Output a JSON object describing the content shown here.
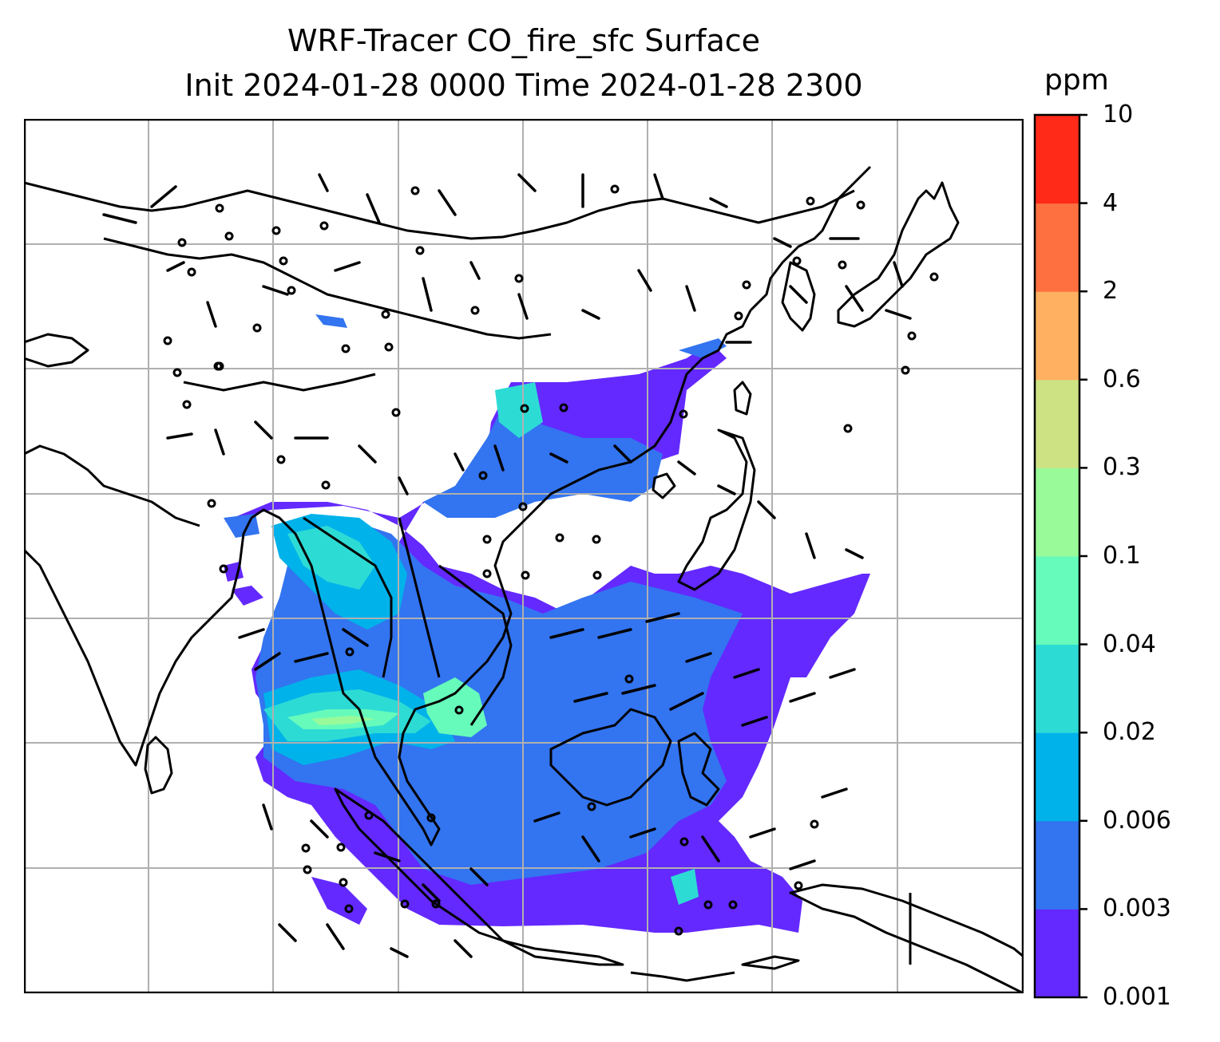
{
  "title_line1": "WRF-Tracer CO_fire_sfc Surface",
  "title_line2": "Init 2024-01-28 0000 Time 2024-01-28 2300",
  "colorbar": {
    "unit": "ppm",
    "levels": [
      "0.001",
      "0.003",
      "0.006",
      "0.02",
      "0.04",
      "0.1",
      "0.3",
      "0.6",
      "2",
      "4",
      "10"
    ],
    "colors": [
      "#6329ff",
      "#3374f0",
      "#00b2ea",
      "#2ddbd5",
      "#66fbbb",
      "#99fa99",
      "#cce283",
      "#ffb060",
      "#ff7040",
      "#ff2a18"
    ]
  },
  "map": {
    "region": "South and Southeast Asia",
    "grid": true,
    "features": [
      "coastlines",
      "country borders",
      "wind barbs",
      "CO_fire_sfc shading"
    ]
  }
}
